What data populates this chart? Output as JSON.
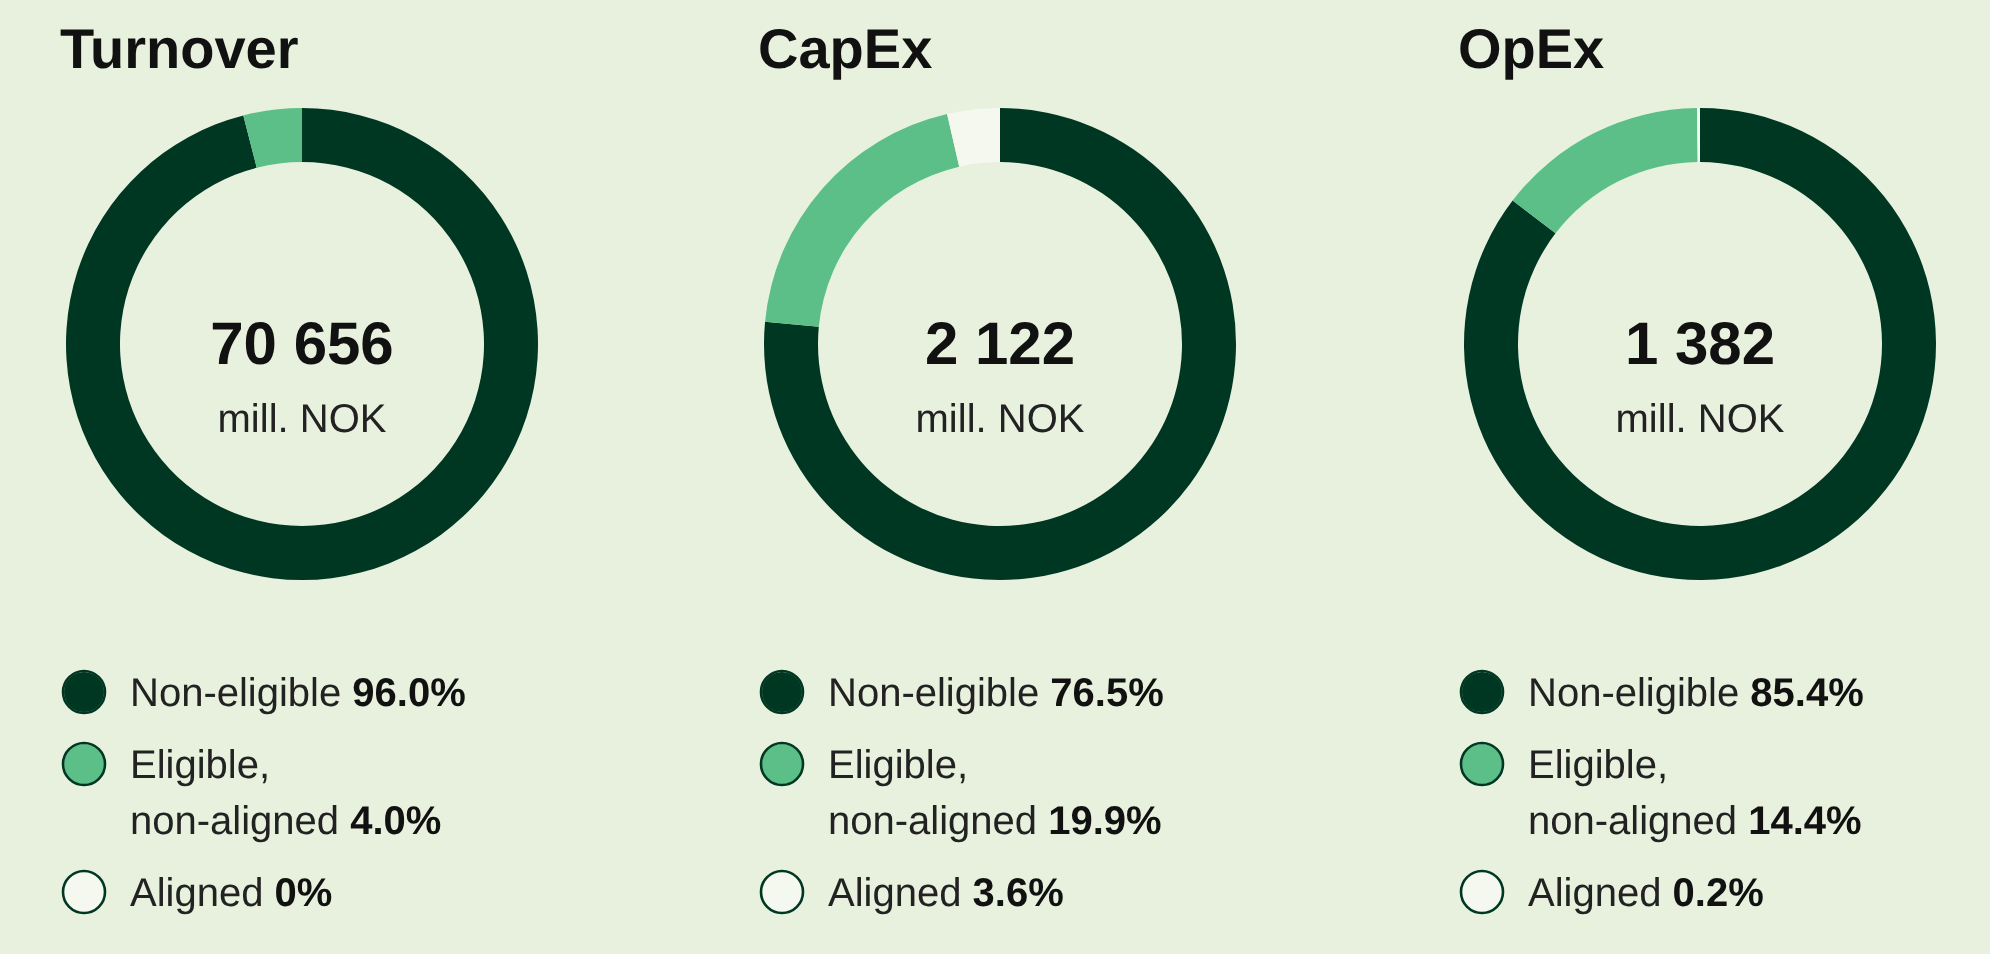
{
  "chart_data": [
    {
      "type": "donut",
      "title": "Turnover",
      "categories": [
        "Non-eligible",
        "Eligible, non-aligned",
        "Aligned"
      ],
      "values": [
        96.0,
        4.0,
        0
      ],
      "value_labels": [
        "96.0%",
        "4.0%",
        "0%"
      ],
      "colors": [
        "#003723",
        "#5dbf88",
        "#f4f8ee"
      ],
      "annotations": [
        "70 656",
        "mill. NOK"
      ],
      "legend": "bottom"
    },
    {
      "type": "donut",
      "title": "CapEx",
      "categories": [
        "Non-eligible",
        "Eligible, non-aligned",
        "Aligned"
      ],
      "values": [
        76.5,
        19.9,
        3.6
      ],
      "value_labels": [
        "76.5%",
        "19.9%",
        "3.6%"
      ],
      "colors": [
        "#003723",
        "#5dbf88",
        "#f4f8ee"
      ],
      "annotations": [
        "2 122",
        "mill. NOK"
      ],
      "legend": "bottom"
    },
    {
      "type": "donut",
      "title": "OpEx",
      "categories": [
        "Non-eligible",
        "Eligible, non-aligned",
        "Aligned"
      ],
      "values": [
        85.4,
        14.4,
        0.2
      ],
      "value_labels": [
        "85.4%",
        "14.4%",
        "0.2%"
      ],
      "colors": [
        "#003723",
        "#5dbf88",
        "#f4f8ee"
      ],
      "annotations": [
        "1 382",
        "mill. NOK"
      ],
      "legend": "bottom"
    }
  ]
}
